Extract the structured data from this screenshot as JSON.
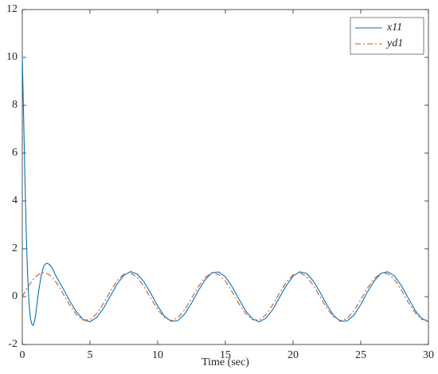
{
  "chart_data": {
    "type": "line",
    "xlabel": "Time (sec)",
    "x": [
      0,
      0.1,
      0.2,
      0.3,
      0.4,
      0.5,
      0.6,
      0.7,
      0.8,
      0.9,
      1.0,
      1.2,
      1.4,
      1.6,
      1.8,
      2.0,
      2.2,
      2.5,
      3,
      3.5,
      4,
      4.5,
      5,
      5.5,
      6,
      6.5,
      7,
      7.5,
      8,
      8.5,
      9,
      9.5,
      10,
      10.5,
      11,
      11.5,
      12,
      12.5,
      13,
      13.5,
      14,
      14.5,
      15,
      15.5,
      16,
      16.5,
      17,
      17.5,
      18,
      18.5,
      19,
      19.5,
      20,
      20.5,
      21,
      21.5,
      22,
      22.5,
      23,
      23.5,
      24,
      24.5,
      25,
      25.5,
      26,
      26.5,
      27,
      27.5,
      28,
      28.5,
      29,
      29.5,
      30
    ],
    "series": [
      {
        "name": "x11",
        "color": "#0072bd",
        "style": "solid",
        "values": [
          10,
          7.5,
          4.8,
          2.5,
          0.8,
          -0.3,
          -0.9,
          -1.15,
          -1.2,
          -1.05,
          -0.7,
          0.2,
          0.9,
          1.3,
          1.4,
          1.35,
          1.2,
          0.85,
          0.35,
          -0.17,
          -0.64,
          -0.96,
          -1.05,
          -0.87,
          -0.48,
          0.02,
          0.52,
          0.89,
          1.05,
          0.94,
          0.61,
          0.13,
          -0.39,
          -0.82,
          -1.03,
          -1.0,
          -0.72,
          -0.27,
          0.25,
          0.7,
          1.0,
          1.03,
          0.83,
          0.41,
          -0.1,
          -0.59,
          -0.93,
          -1.05,
          -0.9,
          -0.54,
          -0.03,
          0.46,
          0.86,
          1.04,
          0.97,
          0.65,
          0.18,
          -0.35,
          -0.79,
          -1.03,
          -1.01,
          -0.77,
          -0.33,
          0.2,
          0.66,
          0.98,
          1.04,
          0.86,
          0.46,
          -0.05,
          -0.56,
          -0.91,
          -1.05
        ]
      },
      {
        "name": "yd1",
        "color": "#d95319",
        "style": "dashdot",
        "values": [
          0,
          0.1,
          0.2,
          0.3,
          0.39,
          0.48,
          0.56,
          0.64,
          0.72,
          0.78,
          0.84,
          0.93,
          0.99,
          1.0,
          0.97,
          0.91,
          0.81,
          0.6,
          0.14,
          -0.35,
          -0.76,
          -0.98,
          -0.96,
          -0.71,
          -0.28,
          0.22,
          0.66,
          0.94,
          0.99,
          0.8,
          0.41,
          -0.08,
          -0.54,
          -0.88,
          -1.0,
          -0.88,
          -0.54,
          -0.07,
          0.42,
          0.8,
          0.99,
          0.93,
          0.65,
          0.2,
          -0.29,
          -0.71,
          -0.96,
          -0.98,
          -0.75,
          -0.34,
          0.15,
          0.61,
          0.91,
          1.0,
          0.84,
          0.47,
          -0.01,
          -0.49,
          -0.85,
          -1.0,
          -0.91,
          -0.59,
          -0.13,
          0.36,
          0.76,
          0.98,
          0.96,
          0.71,
          0.27,
          -0.23,
          -0.66,
          -0.95,
          -0.99
        ]
      }
    ],
    "xlim": [
      0,
      30
    ],
    "xticks": [
      0,
      5,
      10,
      15,
      20,
      25,
      30
    ],
    "ylim": [
      -2,
      12
    ],
    "yticks": [
      -2,
      0,
      2,
      4,
      6,
      8,
      10,
      12
    ],
    "grid": false,
    "legend": "top-right"
  }
}
